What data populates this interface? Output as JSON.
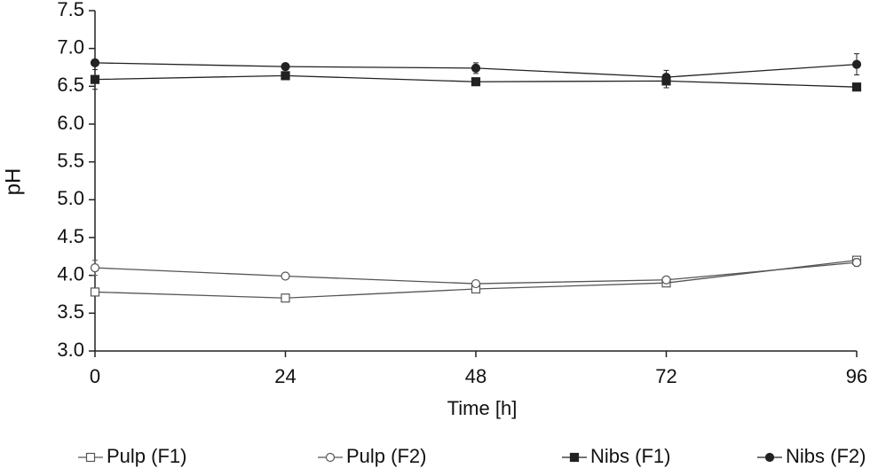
{
  "chart_data": {
    "type": "line",
    "x_label": "Time [h]",
    "y_label": "pH",
    "x": [
      0,
      24,
      48,
      72,
      96
    ],
    "xlim": [
      0,
      96
    ],
    "xticks": [
      0,
      24,
      48,
      72,
      96
    ],
    "ylim": [
      3.0,
      7.5
    ],
    "yticks": [
      {
        "value": 3.0,
        "label": "3.0"
      },
      3.5,
      {
        "value": 4.0,
        "label": "4.0"
      },
      4.5,
      {
        "value": 5.0,
        "label": "5.0"
      },
      5.5,
      {
        "value": 6.0,
        "label": "6.0"
      },
      6.5,
      {
        "value": 7.0,
        "label": "7.0"
      },
      7.5
    ],
    "grid": false,
    "legend": "bottom",
    "series": [
      {
        "name": "Pulp (F1)",
        "color": "#555555",
        "marker": "square",
        "filled": false,
        "values": [
          3.78,
          3.7,
          3.82,
          3.9,
          4.2
        ],
        "errors": [
          0.03,
          0.02,
          0.04,
          0.04,
          0.04
        ]
      },
      {
        "name": "Pulp (F2)",
        "color": "#555555",
        "marker": "circle",
        "filled": false,
        "values": [
          4.1,
          3.99,
          3.89,
          3.94,
          4.17
        ],
        "errors": [
          0.1,
          0.02,
          0.03,
          0.03,
          0.05
        ]
      },
      {
        "name": "Nibs (F1)",
        "color": "#222222",
        "marker": "square",
        "filled": true,
        "values": [
          6.59,
          6.64,
          6.56,
          6.57,
          6.49
        ],
        "errors": [
          0.13,
          0.05,
          0.04,
          0.09,
          0.03
        ]
      },
      {
        "name": "Nibs (F2)",
        "color": "#222222",
        "marker": "circle",
        "filled": true,
        "values": [
          6.81,
          6.76,
          6.74,
          6.62,
          6.79
        ],
        "errors": [
          0.03,
          0.04,
          0.07,
          0.09,
          0.14
        ]
      }
    ]
  }
}
